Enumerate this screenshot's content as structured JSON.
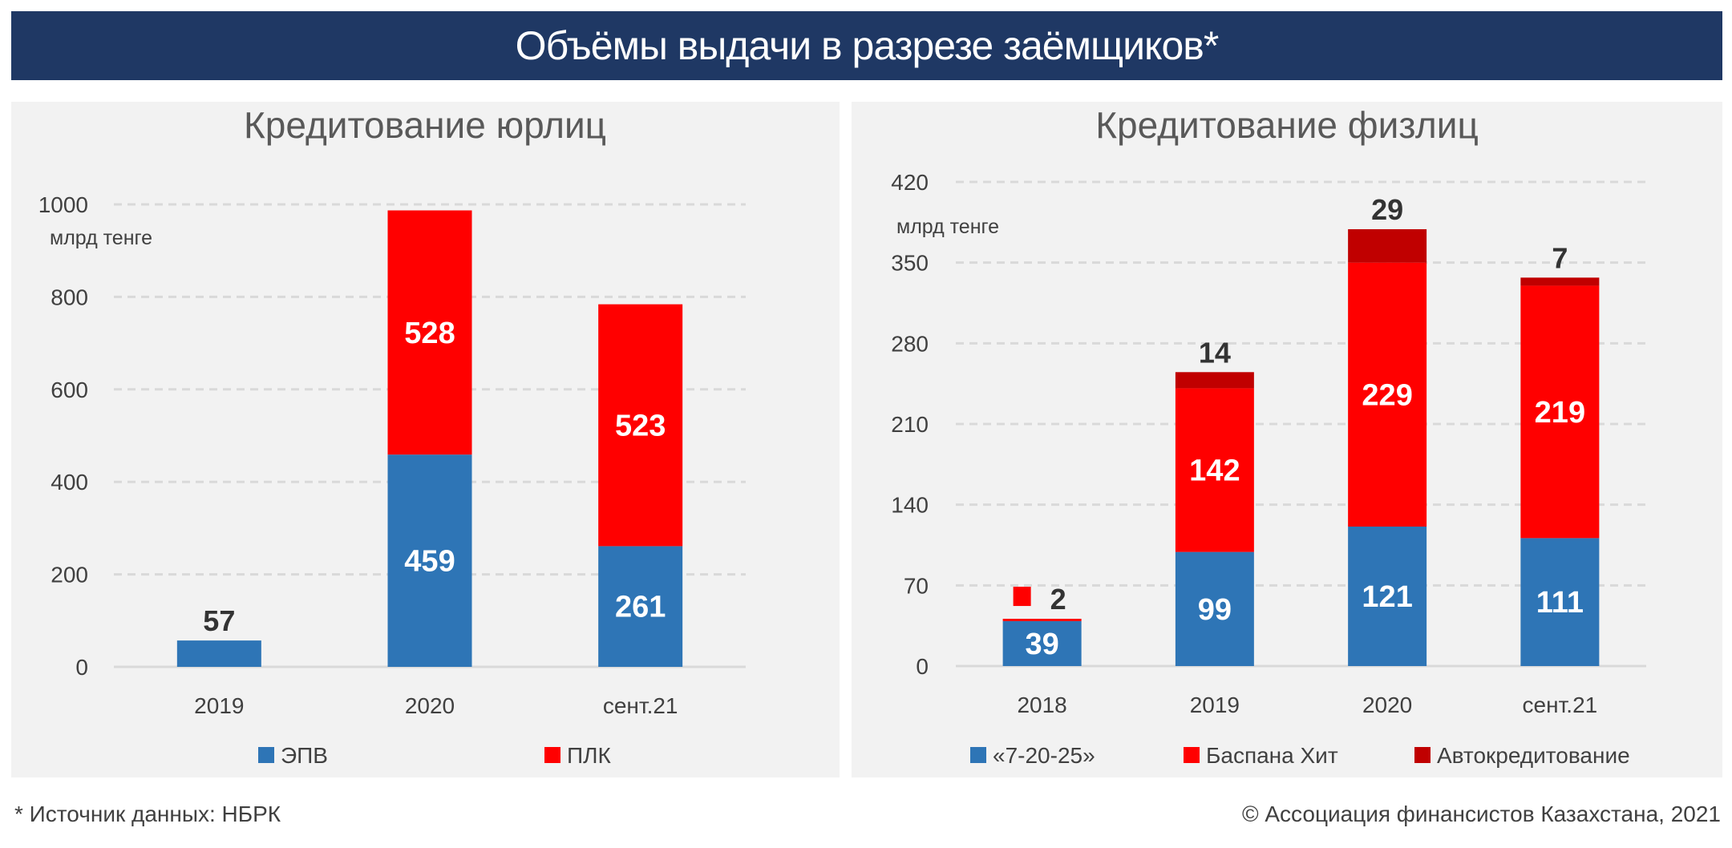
{
  "header": {
    "title": "Объёмы выдачи в разрезе заёмщиков*"
  },
  "chart_data": [
    {
      "type": "bar",
      "stacked": true,
      "title": "Кредитование юрлиц",
      "ylabel": "млрд тенге",
      "ylim": [
        0,
        1000
      ],
      "yticks": [
        0,
        200,
        400,
        600,
        800,
        1000
      ],
      "grid": true,
      "legend_position": "bottom",
      "categories": [
        "2019",
        "2020",
        "сент.21"
      ],
      "series": [
        {
          "name": "ЭПВ",
          "color": "#2e75b6",
          "values": [
            57,
            459,
            261
          ]
        },
        {
          "name": "ПЛК",
          "color": "#ff0000",
          "values": [
            0,
            528,
            523
          ]
        }
      ],
      "data_labels": [
        {
          "series": 0,
          "labels": [
            "57",
            "459",
            "261"
          ]
        },
        {
          "series": 1,
          "labels": [
            "",
            "528",
            "523"
          ]
        }
      ]
    },
    {
      "type": "bar",
      "stacked": true,
      "title": "Кредитование физлиц",
      "ylabel": "млрд тенге",
      "ylim": [
        0,
        420
      ],
      "yticks": [
        0,
        70,
        140,
        210,
        280,
        350,
        420
      ],
      "grid": true,
      "legend_position": "bottom",
      "categories": [
        "2018",
        "2019",
        "2020",
        "сент.21"
      ],
      "series": [
        {
          "name": "«7-20-25»",
          "color": "#2e75b6",
          "values": [
            39,
            99,
            121,
            111
          ]
        },
        {
          "name": "Баспана Хит",
          "color": "#ff0000",
          "values": [
            2,
            142,
            229,
            219
          ]
        },
        {
          "name": "Автокредитование",
          "color": "#c00000",
          "values": [
            0,
            14,
            29,
            7
          ]
        }
      ],
      "data_labels": [
        {
          "series": 0,
          "labels": [
            "39",
            "99",
            "121",
            "111"
          ]
        },
        {
          "series": 1,
          "labels": [
            "2",
            "142",
            "229",
            "219"
          ]
        },
        {
          "series": 2,
          "labels": [
            "",
            "14",
            "29",
            "7"
          ]
        }
      ]
    }
  ],
  "footer": {
    "source": "* Источник данных: НБРК",
    "copyright": "© Ассоциация финансистов Казахстана, 2021"
  }
}
